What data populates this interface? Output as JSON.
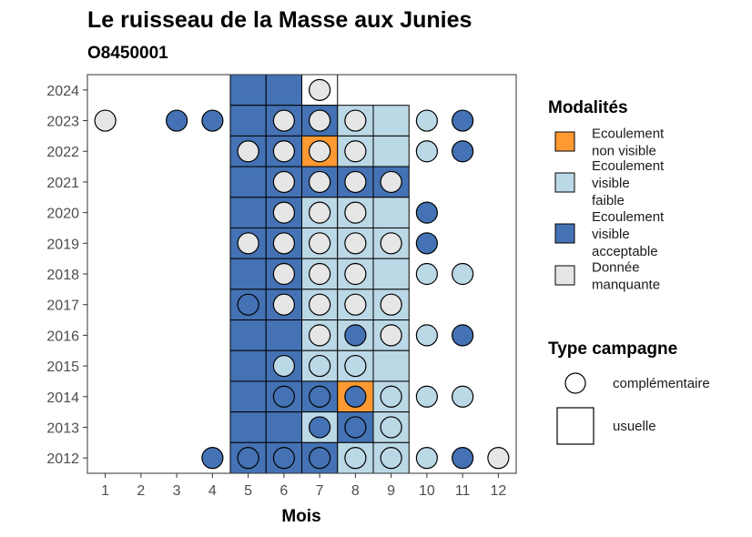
{
  "chart_data": {
    "type": "heatmap",
    "title": "Le ruisseau de la Masse aux Junies",
    "subtitle": "O8450001",
    "xlabel": "Mois",
    "ylabel": "",
    "x_ticks": [
      "1",
      "2",
      "3",
      "4",
      "5",
      "6",
      "7",
      "8",
      "9",
      "10",
      "11",
      "12"
    ],
    "y_ticks": [
      "2012",
      "2013",
      "2014",
      "2015",
      "2016",
      "2017",
      "2018",
      "2019",
      "2020",
      "2021",
      "2022",
      "2023",
      "2024"
    ],
    "xlim": [
      0.5,
      12.5
    ],
    "ylim": [
      2011.5,
      2024.5
    ],
    "grid": false,
    "legend_position": "right",
    "colors": {
      "non_visible": "#FF9A33",
      "visible_faible": "#BBD8E6",
      "visible_acceptable": "#4472B4",
      "manquante": "#E6E6E6"
    },
    "legend_modalites": {
      "title": "Modalités",
      "items": [
        {
          "key": "non_visible",
          "lines": [
            "Ecoulement",
            "non visible"
          ]
        },
        {
          "key": "visible_faible",
          "lines": [
            "Ecoulement",
            "visible",
            "faible"
          ]
        },
        {
          "key": "visible_acceptable",
          "lines": [
            "Ecoulement",
            "visible",
            "acceptable"
          ]
        },
        {
          "key": "manquante",
          "lines": [
            "Donnée",
            "manquante"
          ]
        }
      ]
    },
    "legend_campagne": {
      "title": "Type campagne",
      "items": [
        {
          "shape": "circle",
          "label": "complémentaire"
        },
        {
          "shape": "square",
          "label": "usuelle"
        }
      ]
    },
    "usuelle_tiles": [
      {
        "year": 2024,
        "month": 5,
        "status": "visible_acceptable"
      },
      {
        "year": 2024,
        "month": 6,
        "status": "visible_acceptable"
      },
      {
        "year": 2024,
        "month": 7,
        "status": "none"
      },
      {
        "year": 2023,
        "month": 5,
        "status": "visible_acceptable"
      },
      {
        "year": 2023,
        "month": 6,
        "status": "visible_acceptable"
      },
      {
        "year": 2023,
        "month": 7,
        "status": "visible_acceptable"
      },
      {
        "year": 2023,
        "month": 8,
        "status": "visible_faible"
      },
      {
        "year": 2023,
        "month": 9,
        "status": "visible_faible"
      },
      {
        "year": 2022,
        "month": 5,
        "status": "visible_acceptable"
      },
      {
        "year": 2022,
        "month": 6,
        "status": "visible_acceptable"
      },
      {
        "year": 2022,
        "month": 7,
        "status": "non_visible"
      },
      {
        "year": 2022,
        "month": 8,
        "status": "visible_faible"
      },
      {
        "year": 2022,
        "month": 9,
        "status": "visible_faible"
      },
      {
        "year": 2021,
        "month": 5,
        "status": "visible_acceptable"
      },
      {
        "year": 2021,
        "month": 6,
        "status": "visible_acceptable"
      },
      {
        "year": 2021,
        "month": 7,
        "status": "visible_acceptable"
      },
      {
        "year": 2021,
        "month": 8,
        "status": "visible_acceptable"
      },
      {
        "year": 2021,
        "month": 9,
        "status": "visible_acceptable"
      },
      {
        "year": 2020,
        "month": 5,
        "status": "visible_acceptable"
      },
      {
        "year": 2020,
        "month": 6,
        "status": "visible_acceptable"
      },
      {
        "year": 2020,
        "month": 7,
        "status": "visible_faible"
      },
      {
        "year": 2020,
        "month": 8,
        "status": "visible_faible"
      },
      {
        "year": 2020,
        "month": 9,
        "status": "visible_faible"
      },
      {
        "year": 2019,
        "month": 5,
        "status": "visible_acceptable"
      },
      {
        "year": 2019,
        "month": 6,
        "status": "visible_acceptable"
      },
      {
        "year": 2019,
        "month": 7,
        "status": "visible_faible"
      },
      {
        "year": 2019,
        "month": 8,
        "status": "visible_faible"
      },
      {
        "year": 2019,
        "month": 9,
        "status": "visible_faible"
      },
      {
        "year": 2018,
        "month": 5,
        "status": "visible_acceptable"
      },
      {
        "year": 2018,
        "month": 6,
        "status": "visible_acceptable"
      },
      {
        "year": 2018,
        "month": 7,
        "status": "visible_faible"
      },
      {
        "year": 2018,
        "month": 8,
        "status": "visible_faible"
      },
      {
        "year": 2018,
        "month": 9,
        "status": "visible_faible"
      },
      {
        "year": 2017,
        "month": 5,
        "status": "visible_acceptable"
      },
      {
        "year": 2017,
        "month": 6,
        "status": "visible_acceptable"
      },
      {
        "year": 2017,
        "month": 7,
        "status": "visible_faible"
      },
      {
        "year": 2017,
        "month": 8,
        "status": "visible_faible"
      },
      {
        "year": 2017,
        "month": 9,
        "status": "visible_faible"
      },
      {
        "year": 2016,
        "month": 5,
        "status": "visible_acceptable"
      },
      {
        "year": 2016,
        "month": 6,
        "status": "visible_acceptable"
      },
      {
        "year": 2016,
        "month": 7,
        "status": "visible_faible"
      },
      {
        "year": 2016,
        "month": 8,
        "status": "visible_faible"
      },
      {
        "year": 2016,
        "month": 9,
        "status": "visible_faible"
      },
      {
        "year": 2015,
        "month": 5,
        "status": "visible_acceptable"
      },
      {
        "year": 2015,
        "month": 6,
        "status": "visible_acceptable"
      },
      {
        "year": 2015,
        "month": 7,
        "status": "visible_faible"
      },
      {
        "year": 2015,
        "month": 8,
        "status": "visible_faible"
      },
      {
        "year": 2015,
        "month": 9,
        "status": "visible_faible"
      },
      {
        "year": 2014,
        "month": 5,
        "status": "visible_acceptable"
      },
      {
        "year": 2014,
        "month": 6,
        "status": "visible_acceptable"
      },
      {
        "year": 2014,
        "month": 7,
        "status": "visible_acceptable"
      },
      {
        "year": 2014,
        "month": 8,
        "status": "non_visible"
      },
      {
        "year": 2014,
        "month": 9,
        "status": "visible_faible"
      },
      {
        "year": 2013,
        "month": 5,
        "status": "visible_acceptable"
      },
      {
        "year": 2013,
        "month": 6,
        "status": "visible_acceptable"
      },
      {
        "year": 2013,
        "month": 7,
        "status": "visible_faible"
      },
      {
        "year": 2013,
        "month": 8,
        "status": "visible_acceptable"
      },
      {
        "year": 2013,
        "month": 9,
        "status": "visible_faible"
      },
      {
        "year": 2012,
        "month": 5,
        "status": "visible_acceptable"
      },
      {
        "year": 2012,
        "month": 6,
        "status": "visible_acceptable"
      },
      {
        "year": 2012,
        "month": 7,
        "status": "visible_acceptable"
      },
      {
        "year": 2012,
        "month": 8,
        "status": "visible_faible"
      },
      {
        "year": 2012,
        "month": 9,
        "status": "visible_faible"
      }
    ],
    "complementaire_points": [
      {
        "year": 2024,
        "month": 7,
        "status": "manquante"
      },
      {
        "year": 2023,
        "month": 1,
        "status": "manquante"
      },
      {
        "year": 2023,
        "month": 3,
        "status": "visible_acceptable"
      },
      {
        "year": 2023,
        "month": 4,
        "status": "visible_acceptable"
      },
      {
        "year": 2023,
        "month": 6,
        "status": "manquante"
      },
      {
        "year": 2023,
        "month": 7,
        "status": "manquante"
      },
      {
        "year": 2023,
        "month": 8,
        "status": "manquante"
      },
      {
        "year": 2023,
        "month": 10,
        "status": "visible_faible"
      },
      {
        "year": 2023,
        "month": 11,
        "status": "visible_acceptable"
      },
      {
        "year": 2022,
        "month": 5,
        "status": "manquante"
      },
      {
        "year": 2022,
        "month": 6,
        "status": "manquante"
      },
      {
        "year": 2022,
        "month": 7,
        "status": "manquante"
      },
      {
        "year": 2022,
        "month": 8,
        "status": "manquante"
      },
      {
        "year": 2022,
        "month": 10,
        "status": "visible_faible"
      },
      {
        "year": 2022,
        "month": 11,
        "status": "visible_acceptable"
      },
      {
        "year": 2021,
        "month": 6,
        "status": "manquante"
      },
      {
        "year": 2021,
        "month": 7,
        "status": "manquante"
      },
      {
        "year": 2021,
        "month": 8,
        "status": "manquante"
      },
      {
        "year": 2021,
        "month": 9,
        "status": "manquante"
      },
      {
        "year": 2020,
        "month": 6,
        "status": "manquante"
      },
      {
        "year": 2020,
        "month": 7,
        "status": "manquante"
      },
      {
        "year": 2020,
        "month": 8,
        "status": "manquante"
      },
      {
        "year": 2020,
        "month": 10,
        "status": "visible_acceptable"
      },
      {
        "year": 2019,
        "month": 5,
        "status": "manquante"
      },
      {
        "year": 2019,
        "month": 6,
        "status": "manquante"
      },
      {
        "year": 2019,
        "month": 7,
        "status": "manquante"
      },
      {
        "year": 2019,
        "month": 8,
        "status": "manquante"
      },
      {
        "year": 2019,
        "month": 9,
        "status": "manquante"
      },
      {
        "year": 2019,
        "month": 10,
        "status": "visible_acceptable"
      },
      {
        "year": 2018,
        "month": 6,
        "status": "manquante"
      },
      {
        "year": 2018,
        "month": 7,
        "status": "manquante"
      },
      {
        "year": 2018,
        "month": 8,
        "status": "manquante"
      },
      {
        "year": 2018,
        "month": 10,
        "status": "visible_faible"
      },
      {
        "year": 2018,
        "month": 11,
        "status": "visible_faible"
      },
      {
        "year": 2017,
        "month": 5,
        "status": "visible_acceptable"
      },
      {
        "year": 2017,
        "month": 6,
        "status": "manquante"
      },
      {
        "year": 2017,
        "month": 7,
        "status": "manquante"
      },
      {
        "year": 2017,
        "month": 8,
        "status": "manquante"
      },
      {
        "year": 2017,
        "month": 9,
        "status": "manquante"
      },
      {
        "year": 2016,
        "month": 7,
        "status": "manquante"
      },
      {
        "year": 2016,
        "month": 8,
        "status": "visible_acceptable"
      },
      {
        "year": 2016,
        "month": 9,
        "status": "manquante"
      },
      {
        "year": 2016,
        "month": 10,
        "status": "visible_faible"
      },
      {
        "year": 2016,
        "month": 11,
        "status": "visible_acceptable"
      },
      {
        "year": 2015,
        "month": 6,
        "status": "visible_faible"
      },
      {
        "year": 2015,
        "month": 7,
        "status": "visible_faible"
      },
      {
        "year": 2015,
        "month": 8,
        "status": "visible_faible"
      },
      {
        "year": 2014,
        "month": 6,
        "status": "visible_acceptable"
      },
      {
        "year": 2014,
        "month": 7,
        "status": "visible_acceptable"
      },
      {
        "year": 2014,
        "month": 8,
        "status": "visible_acceptable"
      },
      {
        "year": 2014,
        "month": 9,
        "status": "visible_faible"
      },
      {
        "year": 2014,
        "month": 10,
        "status": "visible_faible"
      },
      {
        "year": 2014,
        "month": 11,
        "status": "visible_faible"
      },
      {
        "year": 2013,
        "month": 7,
        "status": "visible_acceptable"
      },
      {
        "year": 2013,
        "month": 8,
        "status": "visible_acceptable"
      },
      {
        "year": 2013,
        "month": 9,
        "status": "visible_faible"
      },
      {
        "year": 2012,
        "month": 4,
        "status": "visible_acceptable"
      },
      {
        "year": 2012,
        "month": 5,
        "status": "visible_acceptable"
      },
      {
        "year": 2012,
        "month": 6,
        "status": "visible_acceptable"
      },
      {
        "year": 2012,
        "month": 7,
        "status": "visible_acceptable"
      },
      {
        "year": 2012,
        "month": 8,
        "status": "visible_faible"
      },
      {
        "year": 2012,
        "month": 9,
        "status": "visible_faible"
      },
      {
        "year": 2012,
        "month": 10,
        "status": "visible_faible"
      },
      {
        "year": 2012,
        "month": 11,
        "status": "visible_acceptable"
      },
      {
        "year": 2012,
        "month": 12,
        "status": "manquante"
      }
    ]
  }
}
